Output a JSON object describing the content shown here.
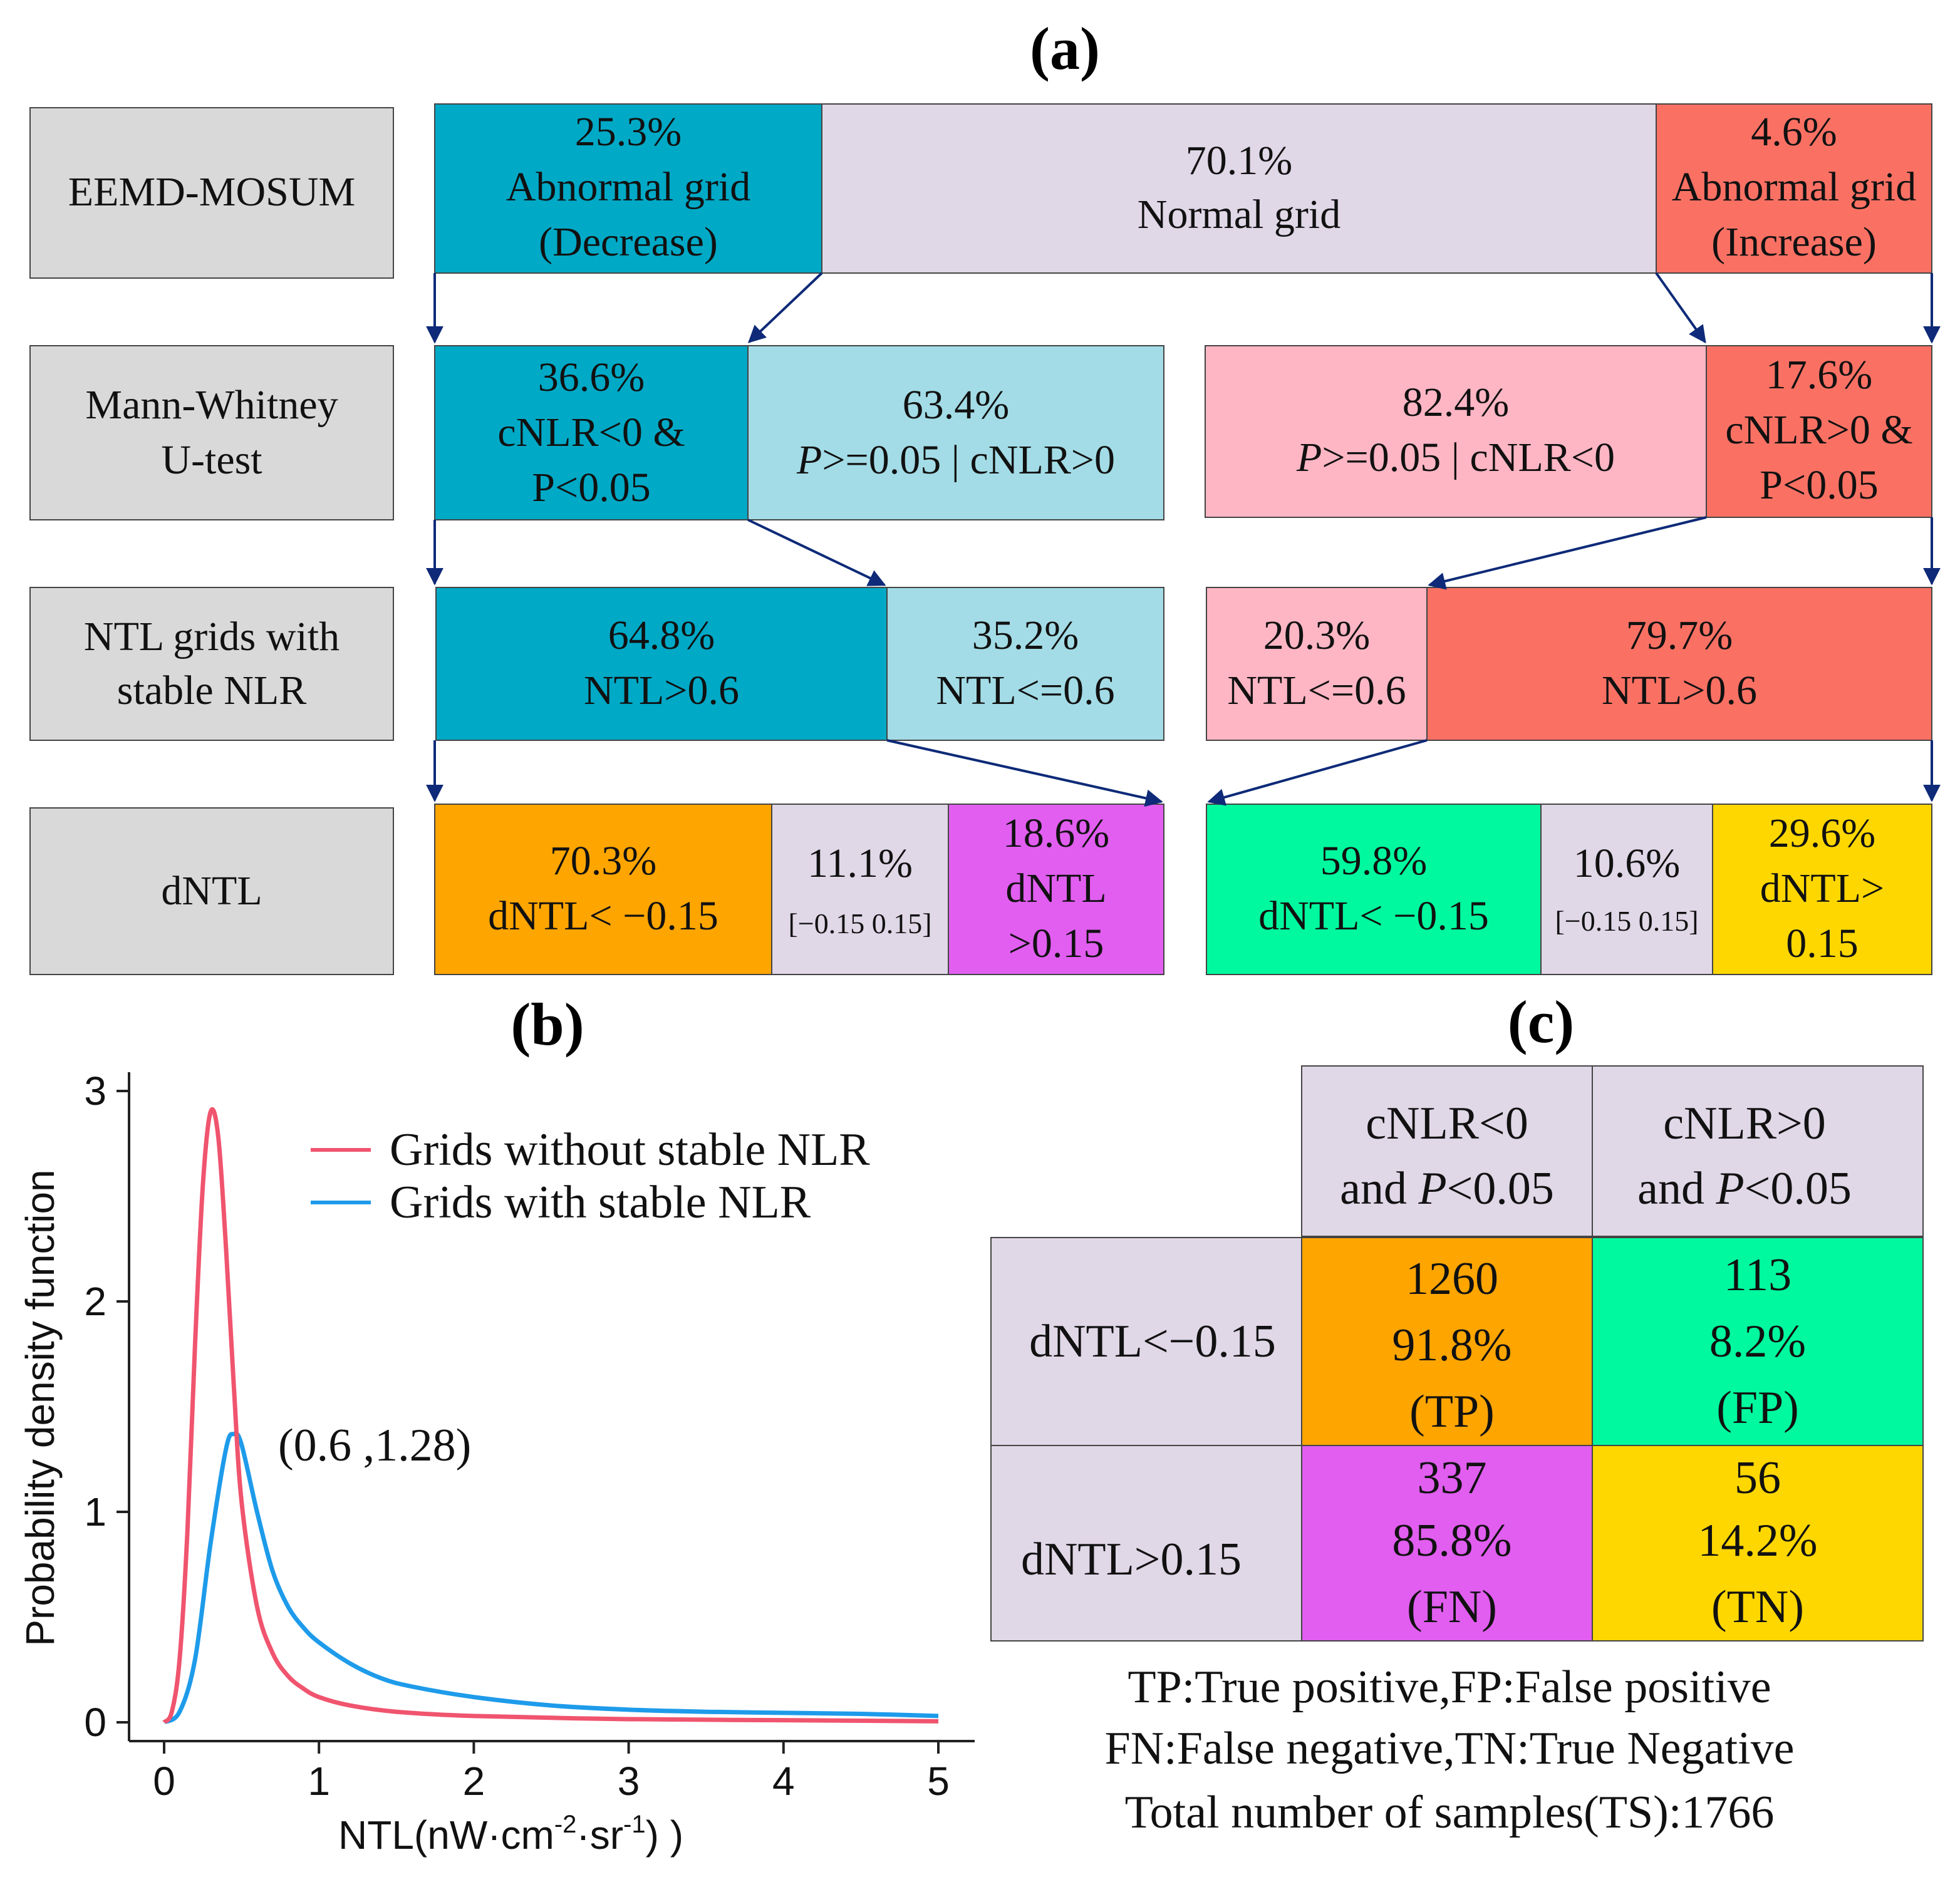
{
  "panel_a": {
    "title": "(a)",
    "row_labels": {
      "r1": "EEMD-MOSUM",
      "r2_l1": "Mann-Whitney",
      "r2_l2": "U-test",
      "r3_l1": "NTL grids with",
      "r3_l2": "stable NLR",
      "r4": "dNTL"
    },
    "row1": {
      "dec_pct": "25.3%",
      "dec_l1": "Abnormal grid",
      "dec_l2": "(Decrease)",
      "norm_pct": "70.1%",
      "norm_l1": "Normal grid",
      "inc_pct": "4.6%",
      "inc_l1": "Abnormal grid",
      "inc_l2": "(Increase)"
    },
    "row2": {
      "a_pct": "36.6%",
      "a_l1": "cNLR<0 &",
      "a_l2": "P<0.05",
      "b_pct": "63.4%",
      "b_p": "P",
      "b_rest": ">=0.05 | cNLR>0",
      "c_pct": "82.4%",
      "c_p": "P",
      "c_rest": ">=0.05 | cNLR<0",
      "d_pct": "17.6%",
      "d_l1": "cNLR>0 &",
      "d_l2": "P<0.05"
    },
    "row3": {
      "a_pct": "64.8%",
      "a_l1": "NTL>0.6",
      "b_pct": "35.2%",
      "b_l1": "NTL<=0.6",
      "c_pct": "20.3%",
      "c_l1": "NTL<=0.6",
      "d_pct": "79.7%",
      "d_l1": "NTL>0.6"
    },
    "row4": {
      "a_pct": "70.3%",
      "a_l1": "dNTL< −0.15",
      "b_pct": "11.1%",
      "b_l1": "[−0.15 0.15]",
      "c_pct": "18.6%",
      "c_l1": "dNTL",
      "c_l2": ">0.15",
      "d_pct": "59.8%",
      "d_l1": "dNTL< −0.15",
      "e_pct": "10.6%",
      "e_l1": "[−0.15 0.15]",
      "f_pct": "29.6%",
      "f_l1": "dNTL>",
      "f_l2": "0.15"
    }
  },
  "panel_b": {
    "title": "(b)",
    "annotation": "(0.6 ,1.28)",
    "ylabel": "Probability density function",
    "xlabel_main": "NTL(nW·cm",
    "xlabel_sup1": "-2",
    "xlabel_mid": "·sr",
    "xlabel_sup2": "-1",
    "xlabel_end": ")  )"
  },
  "chart_data": {
    "type": "line",
    "title": "(b)",
    "xlabel": "NTL(nW·cm-2·sr-1)  )",
    "ylabel": "Probability density function",
    "xlim": [
      0,
      5
    ],
    "ylim": [
      0,
      3
    ],
    "xticks": [
      0,
      1,
      2,
      3,
      4,
      5
    ],
    "yticks": [
      0,
      1,
      2,
      3
    ],
    "legend_position": "top-right",
    "series": [
      {
        "name": "Grids without stable NLR",
        "color": "#f0546e",
        "x": [
          0,
          0.05,
          0.1,
          0.15,
          0.2,
          0.25,
          0.3,
          0.35,
          0.4,
          0.45,
          0.5,
          0.6,
          0.7,
          0.8,
          0.9,
          1.0,
          1.2,
          1.5,
          2.0,
          3.0,
          4.0,
          5.0
        ],
        "y": [
          0,
          0.05,
          0.3,
          0.9,
          1.8,
          2.55,
          2.9,
          2.78,
          2.25,
          1.6,
          1.05,
          0.55,
          0.33,
          0.22,
          0.16,
          0.12,
          0.08,
          0.05,
          0.03,
          0.015,
          0.01,
          0.005
        ]
      },
      {
        "name": "Grids with stable NLR",
        "color": "#1e9bea",
        "x": [
          0,
          0.1,
          0.2,
          0.3,
          0.4,
          0.45,
          0.5,
          0.6,
          0.7,
          0.8,
          0.9,
          1.0,
          1.2,
          1.4,
          1.6,
          2.0,
          2.5,
          3.0,
          3.5,
          4.0,
          4.5,
          5.0
        ],
        "y": [
          0,
          0.05,
          0.3,
          0.85,
          1.3,
          1.37,
          1.32,
          1.0,
          0.72,
          0.55,
          0.45,
          0.38,
          0.28,
          0.21,
          0.17,
          0.12,
          0.08,
          0.06,
          0.05,
          0.045,
          0.04,
          0.03
        ]
      }
    ]
  },
  "panel_c": {
    "title": "(c)",
    "col1_l1": "cNLR<0",
    "col1_l2a": "and ",
    "col1_l2p": "P",
    "col1_l2b": "<0.05",
    "col2_l1": "cNLR>0",
    "col2_l2a": "and ",
    "col2_l2p": "P",
    "col2_l2b": "<0.05",
    "row1_label": "dNTL<−0.15",
    "row2_label": "dNTL>0.15",
    "cells": {
      "tp_n": "1260",
      "tp_pct": "91.8%",
      "tp_lbl": "(TP)",
      "fp_n": "113",
      "fp_pct": "8.2%",
      "fp_lbl": "(FP)",
      "fn_n": "337",
      "fn_pct": "85.8%",
      "fn_lbl": "(FN)",
      "tn_n": "56",
      "tn_pct": "14.2%",
      "tn_lbl": "(TN)"
    },
    "note1": "TP:True positive,FP:False positive",
    "note2": "FN:False negative,TN:True Negative",
    "note3": "Total number of samples(TS):1766"
  },
  "colors": {
    "dark_teal": "#00a9c6",
    "light_teal": "#a3dce6",
    "lavender": "#e0d7e7",
    "salmon": "#fa7164",
    "pink": "#ffb6c4",
    "orange": "#ffa500",
    "magenta": "#e15ef0",
    "green": "#00f99e",
    "yellow": "#ffd700",
    "gray": "#d9d9d9",
    "arrow": "#0e2a78",
    "red_line": "#f0546e",
    "blue_line": "#1e9bea"
  }
}
